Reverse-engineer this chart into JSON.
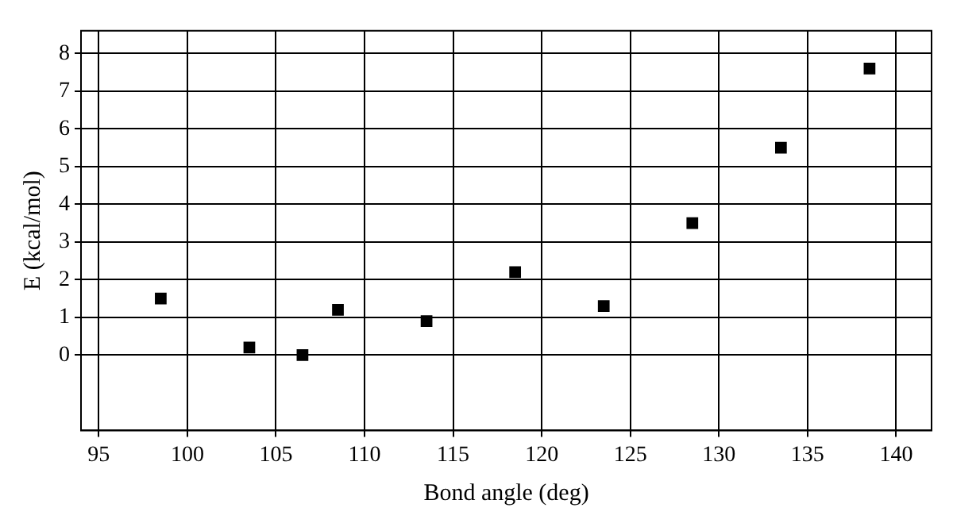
{
  "chart_data": {
    "type": "scatter",
    "xlabel": "Bond angle (deg)",
    "ylabel": "E (kcal/mol)",
    "x": [
      98.5,
      103.5,
      106.5,
      108.5,
      113.5,
      118.5,
      123.5,
      128.5,
      133.5,
      138.5
    ],
    "values": [
      1.5,
      0.2,
      0,
      1.2,
      0.9,
      2.2,
      1.3,
      3.5,
      5.5,
      7.6
    ],
    "color": "#000000",
    "marker": "square",
    "xlim": [
      94,
      142
    ],
    "xticks": [
      95,
      100,
      105,
      110,
      115,
      120,
      125,
      130,
      135,
      140
    ],
    "ylim": [
      -2,
      8.6
    ],
    "yticks": [
      0,
      1,
      2,
      3,
      4,
      5,
      6,
      7,
      8
    ],
    "grid": true,
    "legend": false
  }
}
